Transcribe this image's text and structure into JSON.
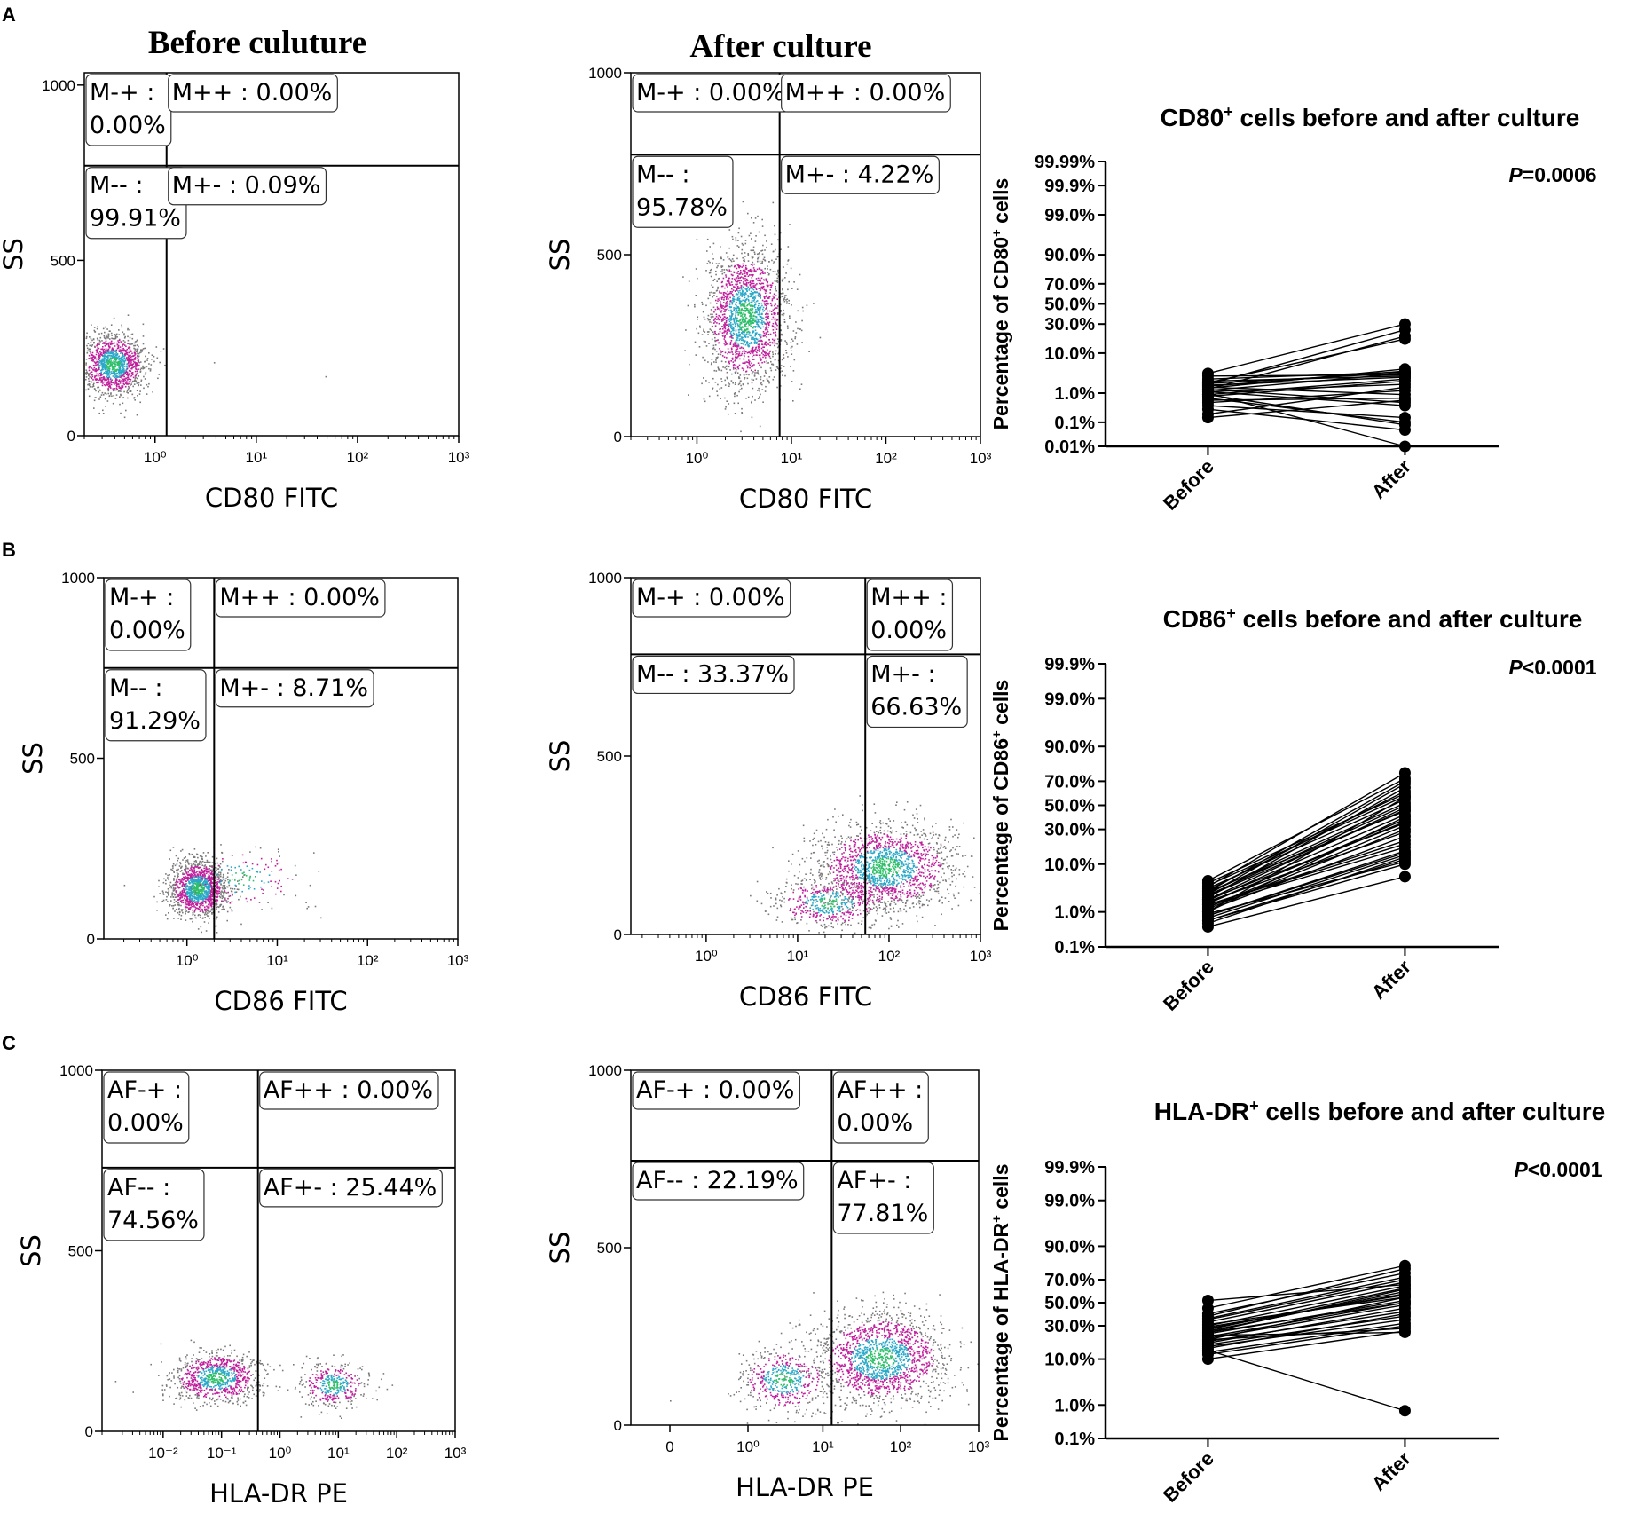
{
  "figure": {
    "panel_letters": [
      "A",
      "B",
      "C"
    ],
    "column_titles": {
      "before": "Before culuture",
      "after": "After culture"
    }
  },
  "colors": {
    "axis": "#000000",
    "gate": "#000000",
    "density": [
      "#7a7a7a",
      "#c0209c",
      "#2aa8c8",
      "#2fbf6a"
    ],
    "dot": "#000000"
  },
  "chart_data": [
    {
      "id": "A-before",
      "type": "scatter",
      "xlabel": "CD80 FITC",
      "ylabel": "SS",
      "xaxis_scale": "log",
      "x_ticks": [
        "10⁰",
        "10¹",
        "10²",
        "10³"
      ],
      "x_tick_values": [
        1,
        10,
        100,
        1000
      ],
      "xlim": [
        0.2,
        1000
      ],
      "y_ticks": [
        "0",
        "500",
        "1000"
      ],
      "y_tick_values": [
        0,
        500,
        1000
      ],
      "ylim": [
        0,
        1035
      ],
      "gate": {
        "x": 1.3,
        "y": 770
      },
      "quadrants": [
        {
          "name": "M-+",
          "text": "M-+ :",
          "value": "0.00%",
          "where": "top-left"
        },
        {
          "name": "M++",
          "text": "M++ : 0.00%",
          "value": "",
          "where": "top-right"
        },
        {
          "name": "M--",
          "text": "M-- :",
          "value": "99.91%",
          "where": "bottom-left"
        },
        {
          "name": "M+-",
          "text": "M+- : 0.09%",
          "value": "",
          "where": "bottom-right"
        }
      ],
      "populations": [
        {
          "cx": 0.38,
          "cy": 205,
          "sx": 0.16,
          "sy": 45,
          "n": 1300
        }
      ],
      "outliers": [
        [
          3.8,
          210
        ],
        [
          48,
          170
        ],
        [
          1.2,
          250
        ]
      ]
    },
    {
      "id": "A-after",
      "type": "scatter",
      "xlabel": "CD80 FITC",
      "ylabel": "SS",
      "xaxis_scale": "log",
      "x_ticks": [
        "10⁰",
        "10¹",
        "10²",
        "10³"
      ],
      "x_tick_values": [
        1,
        10,
        100,
        1000
      ],
      "xlim": [
        0.2,
        1000
      ],
      "y_ticks": [
        "0",
        "500",
        "1000"
      ],
      "y_tick_values": [
        0,
        500,
        1000
      ],
      "ylim": [
        0,
        1000
      ],
      "gate": {
        "x": 7.5,
        "y": 775
      },
      "quadrants": [
        {
          "name": "M-+",
          "text": "M-+ : 0.00%",
          "value": "",
          "where": "top-left"
        },
        {
          "name": "M++",
          "text": "M++ : 0.00%",
          "value": "",
          "where": "top-right"
        },
        {
          "name": "M--",
          "text": "M-- :",
          "value": "95.78%",
          "where": "bottom-left"
        },
        {
          "name": "M+-",
          "text": "M+- : 4.22%",
          "value": "",
          "where": "bottom-right"
        }
      ],
      "populations": [
        {
          "cx": 3.3,
          "cy": 330,
          "sx": 0.22,
          "sy": 95,
          "n": 2000
        }
      ],
      "outliers": []
    },
    {
      "id": "B-before",
      "type": "scatter",
      "xlabel": "CD86 FITC",
      "ylabel": "SS",
      "xaxis_scale": "log",
      "x_ticks": [
        "10⁰",
        "10¹",
        "10²",
        "10³"
      ],
      "x_tick_values": [
        1,
        10,
        100,
        1000
      ],
      "xlim": [
        0.12,
        1000
      ],
      "y_ticks": [
        "0",
        "500",
        "1000"
      ],
      "y_tick_values": [
        0,
        500,
        1000
      ],
      "ylim": [
        0,
        1000
      ],
      "gate": {
        "x": 2.0,
        "y": 750
      },
      "quadrants": [
        {
          "name": "M-+",
          "text": "M-+ :",
          "value": "0.00%",
          "where": "top-left"
        },
        {
          "name": "M++",
          "text": "M++ : 0.00%",
          "value": "",
          "where": "top-right"
        },
        {
          "name": "M--",
          "text": "M-- :",
          "value": "91.29%",
          "where": "bottom-left"
        },
        {
          "name": "M+-",
          "text": "M+- : 8.71%",
          "value": "",
          "where": "bottom-right"
        }
      ],
      "populations": [
        {
          "cx": 1.3,
          "cy": 140,
          "sx": 0.16,
          "sy": 40,
          "n": 1400
        },
        {
          "cx": 4.0,
          "cy": 170,
          "sx": 0.35,
          "sy": 45,
          "n": 150
        }
      ],
      "outliers": [
        [
          0.2,
          150
        ],
        [
          30,
          60
        ],
        [
          25,
          240
        ]
      ]
    },
    {
      "id": "B-after",
      "type": "scatter",
      "xlabel": "CD86 FITC",
      "ylabel": "SS",
      "xaxis_scale": "log",
      "x_ticks": [
        "10⁰",
        "10¹",
        "10²",
        "10³"
      ],
      "x_tick_values": [
        1,
        10,
        100,
        1000
      ],
      "xlim": [
        0.15,
        1000
      ],
      "y_ticks": [
        "0",
        "500",
        "1000"
      ],
      "y_tick_values": [
        0,
        500,
        1000
      ],
      "ylim": [
        0,
        1000
      ],
      "gate": {
        "x": 55,
        "y": 785
      },
      "quadrants": [
        {
          "name": "M-+",
          "text": "M-+ : 0.00%",
          "value": "",
          "where": "top-left"
        },
        {
          "name": "M++",
          "text": "M++ :",
          "value": "0.00%",
          "where": "top-right"
        },
        {
          "name": "M--",
          "text": "M-- : 33.37%",
          "value": "",
          "where": "bottom-left"
        },
        {
          "name": "M+-",
          "text": "M+- :",
          "value": "66.63%",
          "where": "bottom-right"
        }
      ],
      "populations": [
        {
          "cx": 90,
          "cy": 190,
          "sx": 0.38,
          "sy": 60,
          "n": 1700
        },
        {
          "cx": 22,
          "cy": 90,
          "sx": 0.3,
          "sy": 35,
          "n": 500
        }
      ],
      "outliers": [
        [
          3,
          110
        ],
        [
          5,
          80
        ]
      ]
    },
    {
      "id": "C-before",
      "type": "scatter",
      "xlabel": "HLA-DR PE",
      "ylabel": "SS",
      "xaxis_scale": "log",
      "x_ticks": [
        "10⁻²",
        "10⁻¹",
        "10⁰",
        "10¹",
        "10²",
        "10³"
      ],
      "x_tick_values": [
        0.01,
        0.1,
        1,
        10,
        100,
        1000
      ],
      "xlim": [
        0.0009,
        1000
      ],
      "y_ticks": [
        "0",
        "500",
        "1000"
      ],
      "y_tick_values": [
        0,
        500,
        1000
      ],
      "ylim": [
        0,
        1000
      ],
      "gate": {
        "x": 0.42,
        "y": 730
      },
      "quadrants": [
        {
          "name": "AF-+",
          "text": "AF-+ :",
          "value": "0.00%",
          "where": "top-left"
        },
        {
          "name": "AF++",
          "text": "AF++ : 0.00%",
          "value": "",
          "where": "top-right"
        },
        {
          "name": "AF--",
          "text": "AF-- :",
          "value": "74.56%",
          "where": "bottom-left"
        },
        {
          "name": "AF+-",
          "text": "AF+- : 25.44%",
          "value": "",
          "where": "bottom-right"
        }
      ],
      "populations": [
        {
          "cx": 0.08,
          "cy": 150,
          "sx": 0.38,
          "sy": 35,
          "n": 900
        },
        {
          "cx": 8,
          "cy": 130,
          "sx": 0.28,
          "sy": 30,
          "n": 400
        }
      ],
      "outliers": [
        [
          0.003,
          110
        ],
        [
          0.0015,
          140
        ]
      ]
    },
    {
      "id": "C-after",
      "type": "scatter",
      "xlabel": "HLA-DR PE",
      "ylabel": "SS",
      "xaxis_scale": "symlog",
      "x_ticks": [
        "0",
        "10⁰",
        "10¹",
        "10²",
        "10³"
      ],
      "x_tick_values": [
        0,
        1,
        10,
        100,
        1000
      ],
      "xlim": [
        -0.5,
        1000
      ],
      "y_ticks": [
        "0",
        "500",
        "1000"
      ],
      "y_tick_values": [
        0,
        500,
        1000
      ],
      "ylim": [
        0,
        1000
      ],
      "gate": {
        "x": 13,
        "y": 745
      },
      "quadrants": [
        {
          "name": "AF-+",
          "text": "AF-+ : 0.00%",
          "value": "",
          "where": "top-left"
        },
        {
          "name": "AF++",
          "text": "AF++ :",
          "value": "0.00%",
          "where": "top-right"
        },
        {
          "name": "AF--",
          "text": "AF-- : 22.19%",
          "value": "",
          "where": "bottom-left"
        },
        {
          "name": "AF+-",
          "text": "AF+- :",
          "value": "77.81%",
          "where": "bottom-right"
        }
      ],
      "populations": [
        {
          "cx": 55,
          "cy": 190,
          "sx": 0.42,
          "sy": 65,
          "n": 1700
        },
        {
          "cx": 3,
          "cy": 130,
          "sx": 0.3,
          "sy": 45,
          "n": 500
        }
      ],
      "outliers": [
        [
          0,
          70
        ],
        [
          0.5,
          90
        ]
      ]
    },
    {
      "id": "A-paired",
      "type": "line",
      "title": "CD80",
      "title_sup": "+",
      "title_rest": " cells before and after culture",
      "ylabel_pre": "Percentage of CD80",
      "ylabel_sup": "+",
      "ylabel_post": " cells",
      "p_label": "P",
      "p_value": "=0.0006",
      "categories": [
        "Before",
        "After"
      ],
      "y_ticks": [
        "0.01%",
        "0.1%",
        "1.0%",
        "10.0%",
        "30.0%",
        "50.0%",
        "70.0%",
        "90.0%",
        "99.0%",
        "99.9%",
        "99.99%"
      ],
      "y_tick_values": [
        0.01,
        0.1,
        1.0,
        10.0,
        30.0,
        50.0,
        70.0,
        90.0,
        99.0,
        99.9,
        99.99
      ],
      "yaxis_scale": "probit",
      "pairs": [
        [
          1.2,
          3.5
        ],
        [
          0.8,
          2.2
        ],
        [
          1.5,
          0.9
        ],
        [
          2.0,
          18.0
        ],
        [
          0.5,
          1.2
        ],
        [
          1.1,
          0.4
        ],
        [
          3.0,
          3.2
        ],
        [
          0.3,
          0.05
        ],
        [
          1.8,
          25.0
        ],
        [
          0.9,
          0.08
        ],
        [
          1.3,
          20.0
        ],
        [
          2.5,
          3.8
        ],
        [
          0.6,
          0.7
        ],
        [
          1.4,
          4.5
        ],
        [
          0.2,
          1.5
        ],
        [
          1.0,
          0.01
        ],
        [
          1.7,
          2.8
        ],
        [
          0.7,
          0.1
        ],
        [
          2.2,
          3.0
        ],
        [
          1.1,
          1.8
        ],
        [
          0.4,
          0.15
        ],
        [
          1.6,
          4.0
        ],
        [
          0.9,
          2.5
        ],
        [
          1.3,
          0.5
        ],
        [
          3.5,
          30.0
        ],
        [
          1.9,
          3.6
        ],
        [
          0.15,
          0.6
        ]
      ]
    },
    {
      "id": "B-paired",
      "type": "line",
      "title": "CD86",
      "title_sup": "+",
      "title_rest": " cells before and after culture",
      "ylabel_pre": "Percentage of CD86",
      "ylabel_sup": "+",
      "ylabel_post": " cells",
      "p_label": "P",
      "p_value": "<0.0001",
      "categories": [
        "Before",
        "After"
      ],
      "y_ticks": [
        "0.1%",
        "1.0%",
        "10.0%",
        "30.0%",
        "50.0%",
        "70.0%",
        "90.0%",
        "99.0%",
        "99.9%"
      ],
      "y_tick_values": [
        0.1,
        1.0,
        10.0,
        30.0,
        50.0,
        70.0,
        90.0,
        99.0,
        99.9
      ],
      "yaxis_scale": "probit",
      "pairs": [
        [
          2.0,
          35
        ],
        [
          1.5,
          22
        ],
        [
          3.0,
          45
        ],
        [
          0.6,
          12
        ],
        [
          4.5,
          60
        ],
        [
          1.2,
          30
        ],
        [
          2.5,
          50
        ],
        [
          0.4,
          6
        ],
        [
          1.0,
          40
        ],
        [
          3.5,
          55
        ],
        [
          5.0,
          72
        ],
        [
          0.8,
          15
        ],
        [
          1.8,
          28
        ],
        [
          2.2,
          65
        ],
        [
          1.4,
          18
        ],
        [
          0.9,
          11
        ],
        [
          2.8,
          52
        ],
        [
          1.6,
          38
        ],
        [
          0.7,
          14
        ],
        [
          3.2,
          62
        ],
        [
          1.1,
          25
        ],
        [
          4.0,
          58
        ],
        [
          2.0,
          48
        ],
        [
          0.5,
          13
        ],
        [
          1.3,
          33
        ],
        [
          2.6,
          68
        ],
        [
          1.9,
          42
        ],
        [
          0.6,
          10
        ],
        [
          3.8,
          76
        ],
        [
          1.5,
          20
        ],
        [
          1.0,
          57
        ],
        [
          2.4,
          46
        ],
        [
          0.8,
          16
        ],
        [
          1.7,
          36
        ],
        [
          3.0,
          70
        ]
      ]
    },
    {
      "id": "C-paired",
      "type": "line",
      "title": "HLA-DR",
      "title_sup": "+",
      "title_rest": " cells before and after culture",
      "ylabel_pre": "Percentage of HLA-DR",
      "ylabel_sup": "+",
      "ylabel_post": " cells",
      "p_label": "P",
      "p_value": "<0.0001",
      "categories": [
        "Before",
        "After"
      ],
      "y_ticks": [
        "0.1%",
        "1.0%",
        "10.0%",
        "30.0%",
        "50.0%",
        "70.0%",
        "90.0%",
        "99.0%",
        "99.9%"
      ],
      "y_tick_values": [
        0.1,
        1.0,
        10.0,
        30.0,
        50.0,
        70.0,
        90.0,
        99.0,
        99.9
      ],
      "yaxis_scale": "probit",
      "pairs": [
        [
          20,
          55
        ],
        [
          25,
          62
        ],
        [
          35,
          70
        ],
        [
          15,
          40
        ],
        [
          28,
          58
        ],
        [
          12,
          30
        ],
        [
          40,
          75
        ],
        [
          22,
          50
        ],
        [
          18,
          45
        ],
        [
          30,
          65
        ],
        [
          10,
          26
        ],
        [
          26,
          60
        ],
        [
          33,
          68
        ],
        [
          16,
          35
        ],
        [
          24,
          52
        ],
        [
          45,
          80
        ],
        [
          21,
          48
        ],
        [
          14,
          0.7
        ],
        [
          29,
          57
        ],
        [
          19,
          42
        ],
        [
          36,
          72
        ],
        [
          23,
          25
        ],
        [
          27,
          63
        ],
        [
          13,
          32
        ],
        [
          31,
          55
        ],
        [
          17,
          38
        ],
        [
          52,
          66
        ],
        [
          20,
          28
        ],
        [
          38,
          78
        ],
        [
          25,
          50
        ]
      ]
    }
  ]
}
